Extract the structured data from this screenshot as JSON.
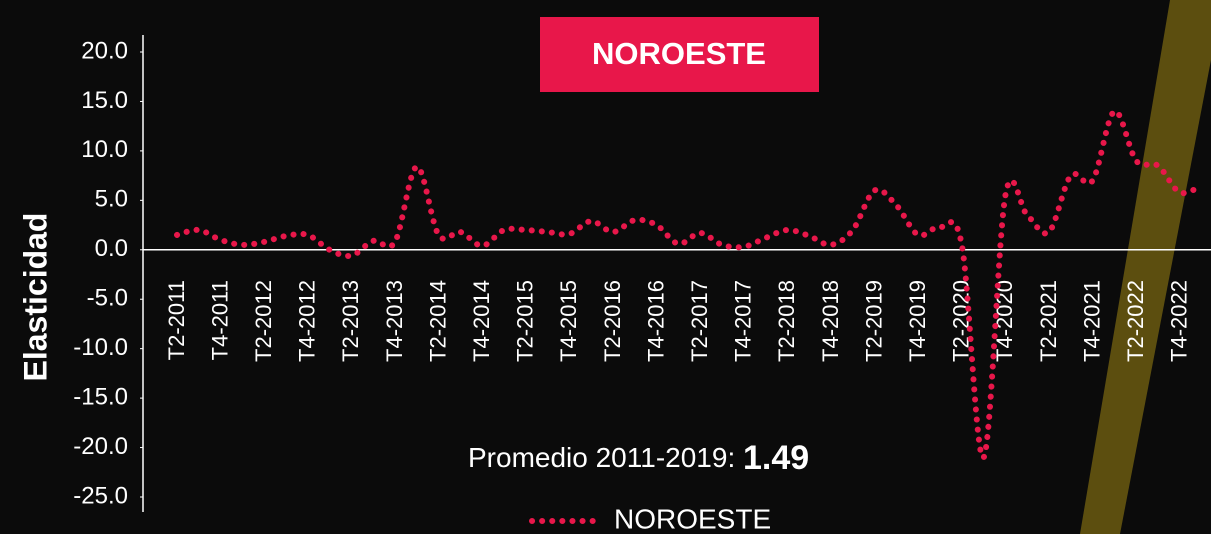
{
  "chart_data": {
    "type": "line",
    "title": "NOROESTE",
    "ylabel": "Elasticidad",
    "annotation": {
      "label": "Promedio 2011-2019:",
      "value": "1.49"
    },
    "categories": [
      "T2-2011",
      null,
      "T4-2011",
      null,
      "T2-2012",
      null,
      "T4-2012",
      null,
      "T2-2013",
      null,
      "T4-2013",
      null,
      "T2-2014",
      null,
      "T4-2014",
      null,
      "T2-2015",
      null,
      "T4-2015",
      null,
      "T2-2016",
      null,
      "T4-2016",
      null,
      "T2-2017",
      null,
      "T4-2017",
      null,
      "T2-2018",
      null,
      "T4-2018",
      null,
      "T2-2019",
      null,
      "T4-2019",
      null,
      "T2-2020",
      null,
      "T4-2020",
      null,
      "T2-2021",
      null,
      "T4-2021",
      null,
      "T2-2022",
      null,
      "T4-2022",
      null
    ],
    "series": [
      {
        "name": "NOROESTE",
        "color": "#e8174a",
        "values": [
          1.5,
          2.0,
          1.0,
          0.5,
          0.8,
          1.4,
          1.5,
          0.0,
          -0.6,
          0.9,
          0.8,
          8.4,
          1.5,
          1.8,
          0.4,
          2.0,
          2.0,
          1.8,
          1.6,
          2.9,
          1.8,
          3.0,
          2.5,
          0.6,
          1.7,
          0.5,
          0.3,
          1.2,
          2.0,
          1.4,
          0.5,
          2.0,
          6.0,
          4.5,
          1.5,
          2.3,
          0.5,
          -21.0,
          5.5,
          3.5,
          1.8,
          7.5,
          7.0,
          14.0,
          9.0,
          8.5,
          5.8,
          6.5
        ]
      }
    ],
    "ylim": [
      -25,
      20
    ],
    "yticks": [
      {
        "value": -25,
        "label": "-25.0"
      },
      {
        "value": -20,
        "label": "-20.0"
      },
      {
        "value": -15,
        "label": "-15.0"
      },
      {
        "value": -10,
        "label": "-10.0"
      },
      {
        "value": -5,
        "label": "-5.0"
      },
      {
        "value": 0,
        "label": "0.0"
      },
      {
        "value": 5,
        "label": "5.0"
      },
      {
        "value": 10,
        "label": "10.0"
      },
      {
        "value": 15,
        "label": "15.0"
      },
      {
        "value": 20,
        "label": "20.0"
      }
    ],
    "legend": "bottom"
  }
}
